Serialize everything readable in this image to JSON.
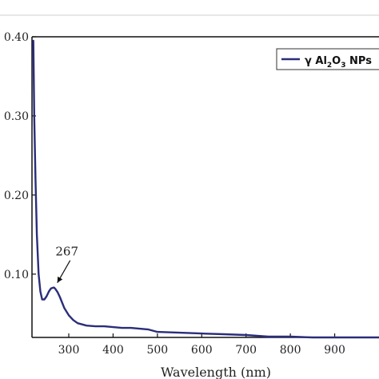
{
  "chart_data": {
    "type": "line",
    "xlabel": "Wavelength (nm)",
    "xlim": [
      217,
      1000
    ],
    "ylim": [
      0.02,
      0.4
    ],
    "x_ticks": [
      300,
      400,
      500,
      600,
      700,
      800,
      900
    ],
    "x_tick_labels": [
      "300",
      "400",
      "500",
      "600",
      "700",
      "800",
      "900"
    ],
    "y_ticks": [
      0.1,
      0.2,
      0.3,
      0.4
    ],
    "y_tick_labels": [
      "0.10",
      "0.20",
      "0.30",
      "0.40"
    ],
    "grid": false,
    "legend_position": "top-right",
    "series": [
      {
        "name": "γ Al2O3 NPs",
        "color": "#2b2d7a",
        "x": [
          220,
          222,
          225,
          228,
          232,
          236,
          240,
          245,
          250,
          255,
          260,
          265,
          267,
          270,
          275,
          280,
          285,
          290,
          300,
          310,
          320,
          340,
          360,
          380,
          400,
          420,
          440,
          460,
          480,
          500,
          550,
          600,
          650,
          700,
          750,
          800,
          850,
          900,
          950,
          1000
        ],
        "y": [
          0.395,
          0.3,
          0.22,
          0.15,
          0.1,
          0.078,
          0.068,
          0.068,
          0.072,
          0.078,
          0.082,
          0.083,
          0.083,
          0.081,
          0.077,
          0.071,
          0.064,
          0.057,
          0.048,
          0.042,
          0.038,
          0.035,
          0.034,
          0.034,
          0.033,
          0.032,
          0.032,
          0.031,
          0.03,
          0.027,
          0.026,
          0.025,
          0.024,
          0.023,
          0.021,
          0.021,
          0.02,
          0.02,
          0.02,
          0.02
        ]
      }
    ],
    "annotations": [
      {
        "text": "267",
        "x": 267,
        "y": 0.083
      }
    ]
  },
  "legend": {
    "prefix": "γ Al",
    "sub1": "2",
    "mid": "O",
    "sub2": "3",
    "suffix": " NPs"
  }
}
